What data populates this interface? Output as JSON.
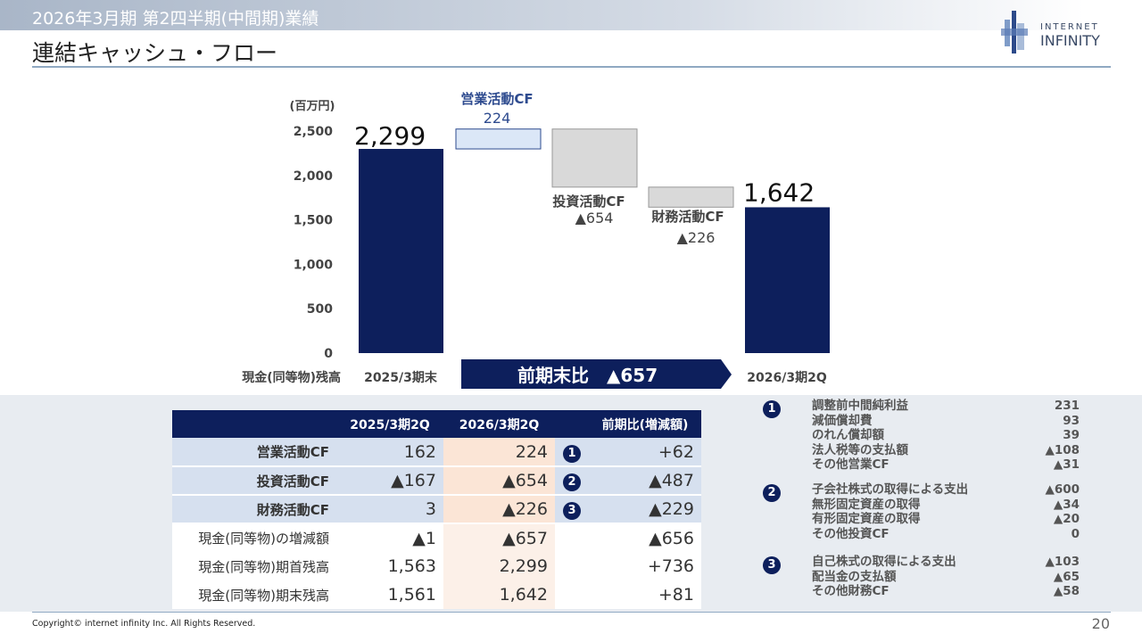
{
  "header": {
    "supertitle": "2026年3月期  第2四半期(中間期)業績",
    "title": "連結キャッシュ・フロー",
    "logo_text": [
      "INTERNET",
      "INFINITY"
    ]
  },
  "chart_data": {
    "type": "bar",
    "subtype": "waterfall",
    "ylabel": "(百万円)",
    "ylim": [
      0,
      2500
    ],
    "yticks": [
      "0",
      "500",
      "1,000",
      "1,500",
      "2,000",
      "2,500"
    ],
    "row_label": "現金(同等物)残高",
    "categories": [
      "2025/3期末",
      "営業活動CF",
      "投資活動CF",
      "財務活動CF",
      "2026/3期2Q"
    ],
    "values": [
      2299,
      224,
      -654,
      -226,
      1642
    ],
    "data_labels": [
      "2,299",
      "224",
      "▲654",
      "▲226",
      "1,642"
    ],
    "kinds": [
      "total",
      "delta",
      "delta",
      "delta",
      "total"
    ],
    "colors": {
      "total": "#0d1f5c",
      "positive": "#dbe7f7",
      "negative": "#d9d9d9",
      "positive_text": "#2e4b8f"
    },
    "banner": {
      "label": "前期末比",
      "value": "▲657"
    }
  },
  "table": {
    "headers": [
      "",
      "2025/3期2Q",
      "2026/3期2Q",
      "",
      "前期比(増減額)"
    ],
    "rows": [
      {
        "label": "営業活動CF",
        "prev": "162",
        "curr": "224",
        "marker": "❶",
        "diff": "+62"
      },
      {
        "label": "投資活動CF",
        "prev": "▲167",
        "curr": "▲654",
        "marker": "❷",
        "diff": "▲487"
      },
      {
        "label": "財務活動CF",
        "prev": "3",
        "curr": "▲226",
        "marker": "❸",
        "diff": "▲229"
      },
      {
        "label": "現金(同等物)の増減額",
        "prev": "▲1",
        "curr": "▲657",
        "marker": "",
        "diff": "▲656"
      },
      {
        "label": "現金(同等物)期首残高",
        "prev": "1,563",
        "curr": "2,299",
        "marker": "",
        "diff": "+736"
      },
      {
        "label": "現金(同等物)期末残高",
        "prev": "1,561",
        "curr": "1,642",
        "marker": "",
        "diff": "+81"
      }
    ]
  },
  "details": [
    {
      "marker": "1",
      "items": [
        [
          "調整前中間純利益",
          "231"
        ],
        [
          "減価償却費",
          "93"
        ],
        [
          "のれん償却額",
          "39"
        ],
        [
          "法人税等の支払額",
          "▲108"
        ],
        [
          "その他営業CF",
          "▲31"
        ]
      ]
    },
    {
      "marker": "2",
      "items": [
        [
          "子会社株式の取得による支出",
          "▲600"
        ],
        [
          "無形固定資産の取得",
          "▲34"
        ],
        [
          "有形固定資産の取得",
          "▲20"
        ],
        [
          "その他投資CF",
          "0"
        ]
      ]
    },
    {
      "marker": "3",
      "items": [
        [
          "自己株式の取得による支出",
          "▲103"
        ],
        [
          "配当金の支払額",
          "▲65"
        ],
        [
          "その他財務CF",
          "▲58"
        ]
      ]
    }
  ],
  "footer": {
    "copyright": "Copyright© internet infinity Inc. All Rights Reserved.",
    "page": "20"
  }
}
